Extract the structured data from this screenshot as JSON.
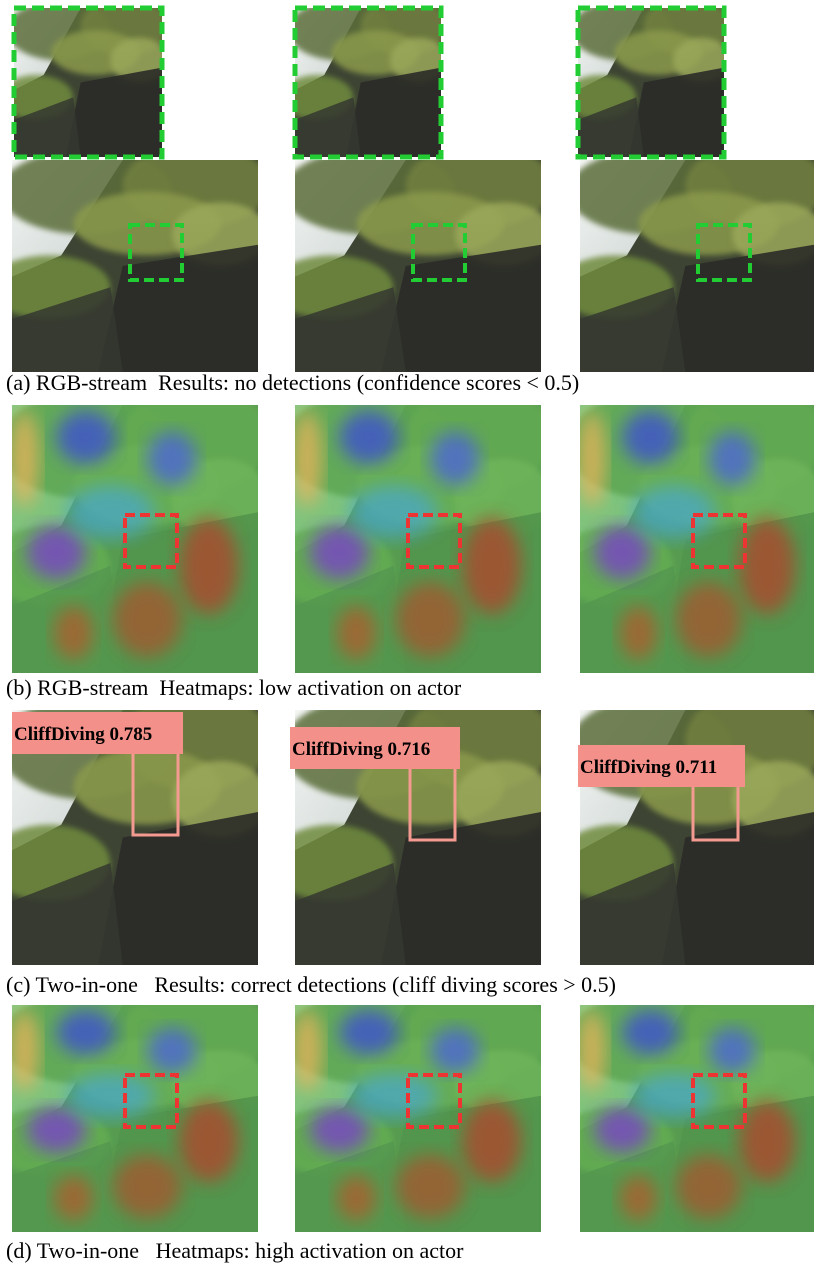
{
  "captions": [
    "(a) RGB-stream  Results: no detections (confidence scores < 0.5)",
    "(b) RGB-stream  Heatmaps: low activation on actor",
    "(c) Two-in-one   Results: correct detections (cliff diving scores > 0.5)",
    "(d) Two-in-one   Heatmaps: high activation on actor"
  ],
  "detections": [
    "CliffDiving 0.785",
    "CliffDiving 0.716",
    "CliffDiving 0.711"
  ]
}
